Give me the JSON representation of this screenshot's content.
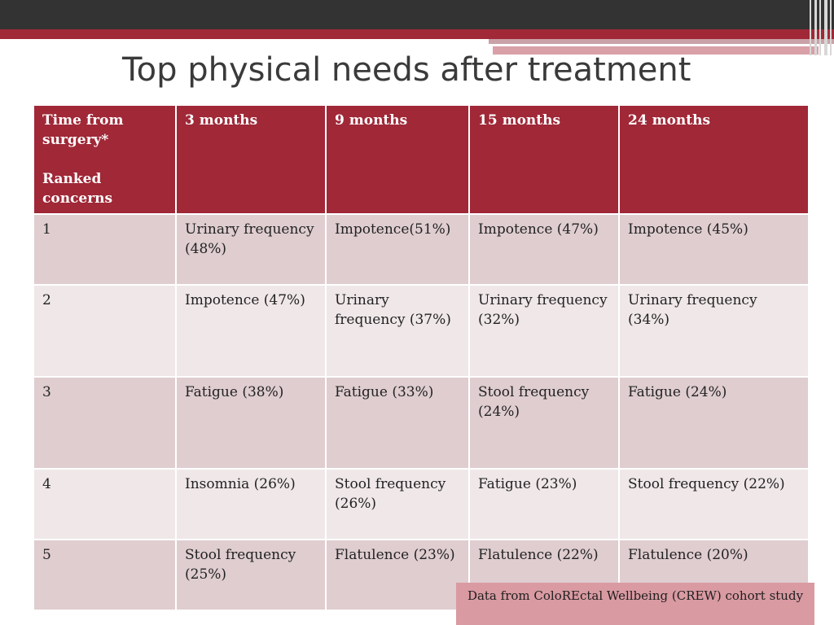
{
  "slide": {
    "title": "Top physical needs after treatment",
    "source_note": "Data from ColoREctal Wellbeing (CREW) cohort study"
  },
  "table": {
    "corner": [
      "Time from",
      "surgery*",
      "Ranked",
      "concerns"
    ],
    "columns": [
      "3 months",
      "9 months",
      "15 months",
      "24 months"
    ],
    "rows": [
      {
        "rank": "1",
        "cells": [
          "Urinary frequency (48%)",
          "Impotence(51%)",
          "Impotence (47%)",
          "Impotence (45%)"
        ]
      },
      {
        "rank": "2",
        "cells": [
          "Impotence (47%)",
          "Urinary frequency (37%)",
          "Urinary frequency (32%)",
          "Urinary frequency (34%)"
        ]
      },
      {
        "rank": "3",
        "cells": [
          "Fatigue (38%)",
          "Fatigue (33%)",
          "Stool frequency (24%)",
          "Fatigue (24%)"
        ]
      },
      {
        "rank": "4",
        "cells": [
          "Insomnia (26%)",
          "Stool frequency (26%)",
          "Fatigue (23%)",
          "Stool frequency (22%)"
        ]
      },
      {
        "rank": "5",
        "cells": [
          "Stool frequency (25%)",
          "Flatulence (23%)",
          "Flatulence (22%)",
          "Flatulence (20%)"
        ]
      }
    ]
  },
  "colors": {
    "header_red": "#a02837",
    "row_dark": "#dfcdd0",
    "row_light": "#efe7e8",
    "top_bar": "#333333"
  }
}
